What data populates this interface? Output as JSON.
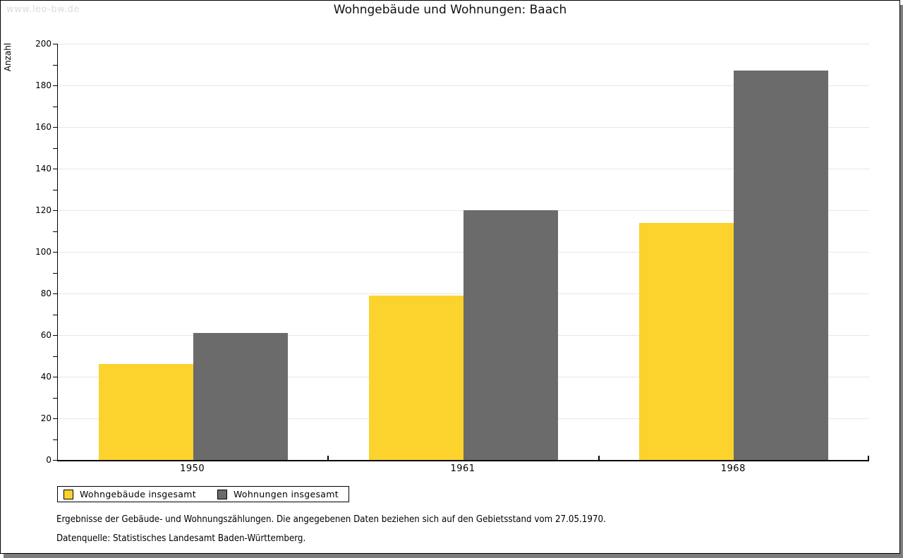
{
  "watermark": "www.leo-bw.de",
  "title": "Wohngebäude und Wohnungen: Baach",
  "chart_data": {
    "type": "bar",
    "title": "Wohngebäude und Wohnungen: Baach",
    "categories": [
      "1950",
      "1961",
      "1968"
    ],
    "series": [
      {
        "name": "Wohngebäude insgesamt",
        "color": "#FCD32D",
        "values": [
          46,
          79,
          114
        ]
      },
      {
        "name": "Wohnungen insgesamt",
        "color": "#6B6B6B",
        "values": [
          61,
          120,
          187
        ]
      }
    ],
    "xlabel": "",
    "ylabel": "Anzahl",
    "ylim": [
      0,
      200
    ],
    "ytick_step": 20,
    "minor_tick_step": 10,
    "grid": true,
    "legend_position": "bottom-left"
  },
  "footnotes": [
    "Ergebnisse der Gebäude- und Wohnungszählungen. Die angegebenen Daten beziehen sich auf den Gebietsstand vom 27.05.1970.",
    "Datenquelle: Statistisches Landesamt Baden-Württemberg."
  ],
  "colors": {
    "series_1": "#FCD32D",
    "series_2": "#6B6B6B",
    "gridline": "#E6E6E6",
    "watermark_text": "#DCDCDC",
    "shadow": "#7D7D7D",
    "axis": "#000000"
  }
}
